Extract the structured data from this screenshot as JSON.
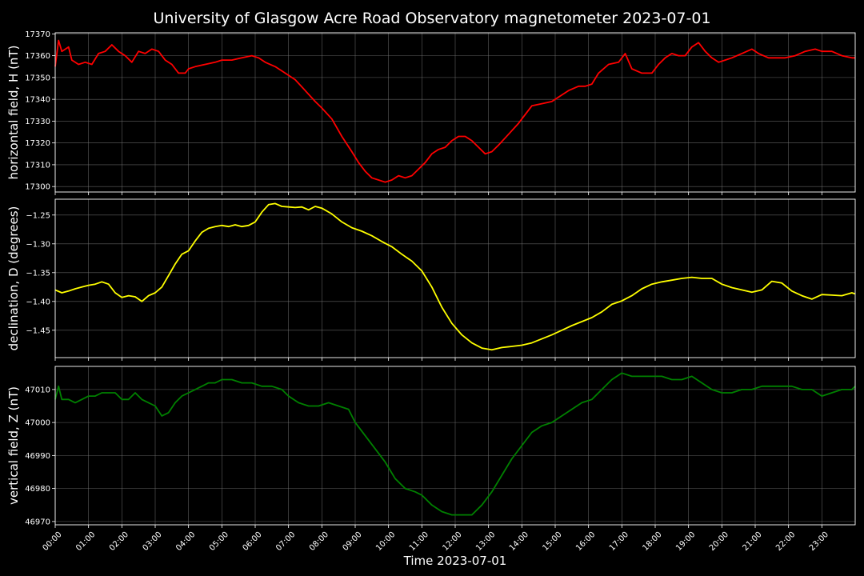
{
  "chart_data": {
    "type": "line",
    "title": "University of Glasgow Acre Road Observatory magnetometer 2023-07-01",
    "xlabel": "Time 2023-07-01",
    "x_ticks": [
      "00:00",
      "01:00",
      "02:00",
      "03:00",
      "04:00",
      "05:00",
      "06:00",
      "07:00",
      "08:00",
      "09:00",
      "10:00",
      "11:00",
      "12:00",
      "13:00",
      "14:00",
      "15:00",
      "16:00",
      "17:00",
      "18:00",
      "19:00",
      "20:00",
      "21:00",
      "22:00",
      "23:00"
    ],
    "xlim": [
      0,
      24
    ],
    "grid": true,
    "panels": [
      {
        "name": "horizontal",
        "ylabel": "horizontal field, H (nT)",
        "color": "#ff0000",
        "ylim": [
          17297.5,
          17370.5
        ],
        "yticks": [
          17300,
          17310,
          17320,
          17330,
          17340,
          17350,
          17360,
          17370
        ],
        "ytick_labels": [
          "17300",
          "17310",
          "17320",
          "17330",
          "17340",
          "17350",
          "17360",
          "17370"
        ],
        "x": [
          0,
          0.1,
          0.2,
          0.4,
          0.5,
          0.7,
          0.9,
          1.1,
          1.3,
          1.5,
          1.7,
          1.9,
          2.1,
          2.3,
          2.5,
          2.7,
          2.9,
          3.1,
          3.3,
          3.5,
          3.7,
          3.9,
          4.0,
          4.2,
          4.5,
          4.8,
          5.0,
          5.3,
          5.6,
          5.9,
          6.1,
          6.3,
          6.6,
          6.9,
          7.2,
          7.5,
          7.8,
          8.0,
          8.3,
          8.6,
          8.9,
          9.1,
          9.3,
          9.5,
          9.7,
          9.9,
          10.1,
          10.3,
          10.5,
          10.7,
          10.9,
          11.1,
          11.3,
          11.5,
          11.7,
          11.9,
          12.1,
          12.3,
          12.5,
          12.7,
          12.9,
          13.1,
          13.3,
          13.6,
          13.9,
          14.1,
          14.3,
          14.6,
          14.9,
          15.1,
          15.4,
          15.7,
          15.9,
          16.1,
          16.3,
          16.6,
          16.9,
          17.1,
          17.3,
          17.6,
          17.9,
          18.1,
          18.3,
          18.5,
          18.7,
          18.9,
          19.1,
          19.3,
          19.5,
          19.7,
          19.9,
          20.1,
          20.3,
          20.6,
          20.9,
          21.1,
          21.4,
          21.7,
          21.9,
          22.2,
          22.5,
          22.8,
          23.0,
          23.3,
          23.6,
          23.9,
          24
        ],
        "values": [
          17355,
          17367,
          17362,
          17364,
          17358,
          17356,
          17357,
          17356,
          17361,
          17362,
          17365,
          17362,
          17360,
          17357,
          17362,
          17361,
          17363,
          17362,
          17358,
          17356,
          17352,
          17352,
          17354,
          17355,
          17356,
          17357,
          17358,
          17358,
          17359,
          17360,
          17359,
          17357,
          17355,
          17352,
          17349,
          17344,
          17339,
          17336,
          17331,
          17323,
          17316,
          17311,
          17307,
          17304,
          17303,
          17302,
          17303,
          17305,
          17304,
          17305,
          17308,
          17311,
          17315,
          17317,
          17318,
          17321,
          17323,
          17323,
          17321,
          17318,
          17315,
          17316,
          17319,
          17324,
          17329,
          17333,
          17337,
          17338,
          17339,
          17341,
          17344,
          17346,
          17346,
          17347,
          17352,
          17356,
          17357,
          17361,
          17354,
          17352,
          17352,
          17356,
          17359,
          17361,
          17360,
          17360,
          17364,
          17366,
          17362,
          17359,
          17357,
          17358,
          17359,
          17361,
          17363,
          17361,
          17359,
          17359,
          17359,
          17360,
          17362,
          17363,
          17362,
          17362,
          17360,
          17359,
          17359
        ]
      },
      {
        "name": "declination",
        "ylabel": "declination, D (degrees)",
        "color": "#ffff00",
        "ylim": [
          -1.4975,
          -1.2225
        ],
        "yticks": [
          -1.45,
          -1.4,
          -1.35,
          -1.3,
          -1.25
        ],
        "ytick_labels": [
          "−1.45",
          "−1.40",
          "−1.35",
          "−1.30",
          "−1.25"
        ],
        "x": [
          0,
          0.2,
          0.4,
          0.6,
          0.8,
          1.0,
          1.2,
          1.4,
          1.6,
          1.8,
          2.0,
          2.2,
          2.4,
          2.6,
          2.8,
          3.0,
          3.2,
          3.4,
          3.6,
          3.8,
          4.0,
          4.2,
          4.4,
          4.6,
          4.8,
          5.0,
          5.2,
          5.4,
          5.6,
          5.8,
          6.0,
          6.2,
          6.4,
          6.6,
          6.8,
          7.0,
          7.2,
          7.4,
          7.6,
          7.8,
          8.0,
          8.3,
          8.6,
          8.9,
          9.2,
          9.5,
          9.8,
          10.1,
          10.4,
          10.7,
          11.0,
          11.3,
          11.6,
          11.9,
          12.2,
          12.5,
          12.8,
          13.1,
          13.4,
          13.7,
          14.0,
          14.3,
          14.6,
          14.9,
          15.2,
          15.5,
          15.8,
          16.1,
          16.4,
          16.7,
          17.0,
          17.3,
          17.6,
          17.9,
          18.2,
          18.5,
          18.8,
          19.1,
          19.4,
          19.7,
          20.0,
          20.3,
          20.6,
          20.9,
          21.2,
          21.5,
          21.8,
          22.1,
          22.4,
          22.7,
          23.0,
          23.3,
          23.6,
          23.9,
          24
        ],
        "values": [
          -1.38,
          -1.385,
          -1.382,
          -1.378,
          -1.375,
          -1.372,
          -1.37,
          -1.366,
          -1.37,
          -1.385,
          -1.393,
          -1.39,
          -1.392,
          -1.4,
          -1.39,
          -1.385,
          -1.375,
          -1.355,
          -1.335,
          -1.318,
          -1.312,
          -1.295,
          -1.28,
          -1.273,
          -1.27,
          -1.268,
          -1.27,
          -1.267,
          -1.27,
          -1.268,
          -1.262,
          -1.245,
          -1.232,
          -1.23,
          -1.235,
          -1.236,
          -1.237,
          -1.236,
          -1.241,
          -1.235,
          -1.238,
          -1.248,
          -1.262,
          -1.272,
          -1.278,
          -1.286,
          -1.296,
          -1.305,
          -1.318,
          -1.33,
          -1.347,
          -1.375,
          -1.41,
          -1.438,
          -1.458,
          -1.472,
          -1.481,
          -1.484,
          -1.48,
          -1.478,
          -1.476,
          -1.472,
          -1.465,
          -1.458,
          -1.45,
          -1.442,
          -1.435,
          -1.428,
          -1.418,
          -1.405,
          -1.399,
          -1.39,
          -1.378,
          -1.37,
          -1.366,
          -1.363,
          -1.36,
          -1.358,
          -1.36,
          -1.36,
          -1.37,
          -1.376,
          -1.38,
          -1.384,
          -1.38,
          -1.365,
          -1.368,
          -1.382,
          -1.39,
          -1.396,
          -1.388,
          -1.389,
          -1.39,
          -1.385,
          -1.387
        ]
      },
      {
        "name": "vertical",
        "ylabel": "vertical field, Z (nT)",
        "color": "#008000",
        "ylim": [
          46969,
          47017
        ],
        "yticks": [
          46970,
          46980,
          46990,
          47000,
          47010
        ],
        "ytick_labels": [
          "46970",
          "46980",
          "46990",
          "47000",
          "47010"
        ],
        "x": [
          0,
          0.1,
          0.2,
          0.4,
          0.6,
          0.8,
          1.0,
          1.2,
          1.4,
          1.6,
          1.8,
          2.0,
          2.2,
          2.4,
          2.6,
          2.8,
          3.0,
          3.2,
          3.4,
          3.6,
          3.8,
          4.0,
          4.2,
          4.4,
          4.6,
          4.8,
          5.0,
          5.3,
          5.6,
          5.9,
          6.2,
          6.5,
          6.8,
          7.0,
          7.3,
          7.6,
          7.9,
          8.2,
          8.5,
          8.8,
          9.0,
          9.3,
          9.6,
          9.9,
          10.2,
          10.5,
          10.8,
          11.0,
          11.3,
          11.6,
          11.9,
          12.2,
          12.5,
          12.8,
          13.1,
          13.4,
          13.7,
          14.0,
          14.3,
          14.6,
          14.9,
          15.2,
          15.5,
          15.8,
          16.1,
          16.4,
          16.7,
          17.0,
          17.3,
          17.6,
          17.9,
          18.2,
          18.5,
          18.8,
          19.1,
          19.4,
          19.7,
          20.0,
          20.3,
          20.6,
          20.9,
          21.2,
          21.5,
          21.8,
          22.1,
          22.4,
          22.7,
          23.0,
          23.3,
          23.6,
          23.9,
          24
        ],
        "values": [
          47007,
          47011,
          47007,
          47007,
          47006,
          47007,
          47008,
          47008,
          47009,
          47009,
          47009,
          47007,
          47007,
          47009,
          47007,
          47006,
          47005,
          47002,
          47003,
          47006,
          47008,
          47009,
          47010,
          47011,
          47012,
          47012,
          47013,
          47013,
          47012,
          47012,
          47011,
          47011,
          47010,
          47008,
          47006,
          47005,
          47005,
          47006,
          47005,
          47004,
          47000,
          46996,
          46992,
          46988,
          46983,
          46980,
          46979,
          46978,
          46975,
          46973,
          46972,
          46972,
          46972,
          46975,
          46979,
          46984,
          46989,
          46993,
          46997,
          46999,
          47000,
          47002,
          47004,
          47006,
          47007,
          47010,
          47013,
          47015,
          47014,
          47014,
          47014,
          47014,
          47013,
          47013,
          47014,
          47012,
          47010,
          47009,
          47009,
          47010,
          47010,
          47011,
          47011,
          47011,
          47011,
          47010,
          47010,
          47008,
          47009,
          47010,
          47010,
          47011
        ]
      }
    ]
  }
}
